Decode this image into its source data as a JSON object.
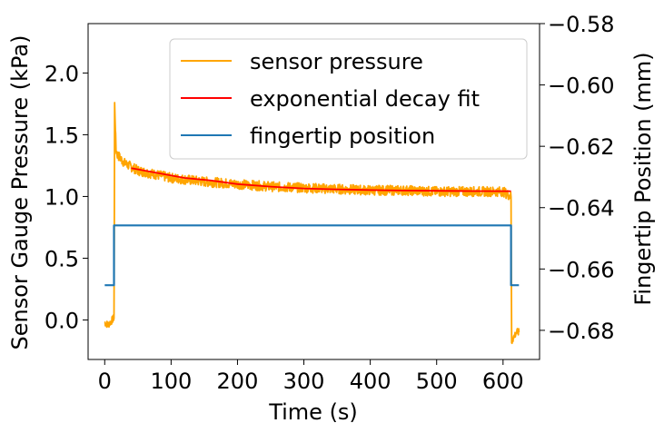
{
  "chart_data": {
    "type": "line",
    "xlabel": "Time (s)",
    "ylabel": "Sensor Gauge Pressure (kPa)",
    "y2label": "Fingertip Position (mm)",
    "xlim": [
      -25,
      655
    ],
    "ylim": [
      -0.32,
      2.4
    ],
    "y2lim": [
      -0.6895,
      -0.58
    ],
    "xticks": [
      0,
      100,
      200,
      300,
      400,
      500,
      600
    ],
    "xtick_labels": [
      "0",
      "100",
      "200",
      "300",
      "400",
      "500",
      "600"
    ],
    "yticks": [
      0.0,
      0.5,
      1.0,
      1.5,
      2.0
    ],
    "ytick_labels": [
      "0.0",
      "0.5",
      "1.0",
      "1.5",
      "2.0"
    ],
    "y2ticks": [
      -0.68,
      -0.66,
      -0.64,
      -0.62,
      -0.6,
      -0.58
    ],
    "y2tick_labels": [
      "−0.68",
      "−0.66",
      "−0.64",
      "−0.62",
      "−0.60",
      "−0.58"
    ],
    "grid": false,
    "legend_position": "top-right",
    "series": [
      {
        "name": "sensor pressure",
        "axis": "left",
        "color": "#ffa500",
        "x": [
          0,
          5,
          10,
          14,
          15,
          17,
          19,
          22,
          25,
          30,
          40,
          50,
          75,
          100,
          150,
          200,
          250,
          300,
          350,
          400,
          450,
          500,
          550,
          600,
          612,
          613,
          615,
          620,
          624
        ],
        "y": [
          -0.02,
          -0.04,
          -0.01,
          0.02,
          1.75,
          1.38,
          1.34,
          1.32,
          1.3,
          1.27,
          1.24,
          1.21,
          1.18,
          1.15,
          1.12,
          1.1,
          1.08,
          1.07,
          1.06,
          1.05,
          1.05,
          1.04,
          1.04,
          1.04,
          1.0,
          -0.18,
          -0.15,
          -0.1,
          -0.1
        ]
      },
      {
        "name": "exponential decay fit",
        "axis": "left",
        "color": "#ff0000",
        "x": [
          40,
          80,
          120,
          160,
          200,
          250,
          300,
          350,
          400,
          450,
          500,
          550,
          612
        ],
        "y": [
          1.23,
          1.19,
          1.15,
          1.13,
          1.1,
          1.08,
          1.065,
          1.058,
          1.052,
          1.048,
          1.046,
          1.044,
          1.043
        ]
      },
      {
        "name": "fingertip position",
        "axis": "right",
        "color": "#1f77b4",
        "x": [
          0,
          14,
          14,
          612,
          612,
          624
        ],
        "y": [
          -0.6653,
          -0.6653,
          -0.6458,
          -0.6458,
          -0.6653,
          -0.6653
        ]
      }
    ]
  }
}
